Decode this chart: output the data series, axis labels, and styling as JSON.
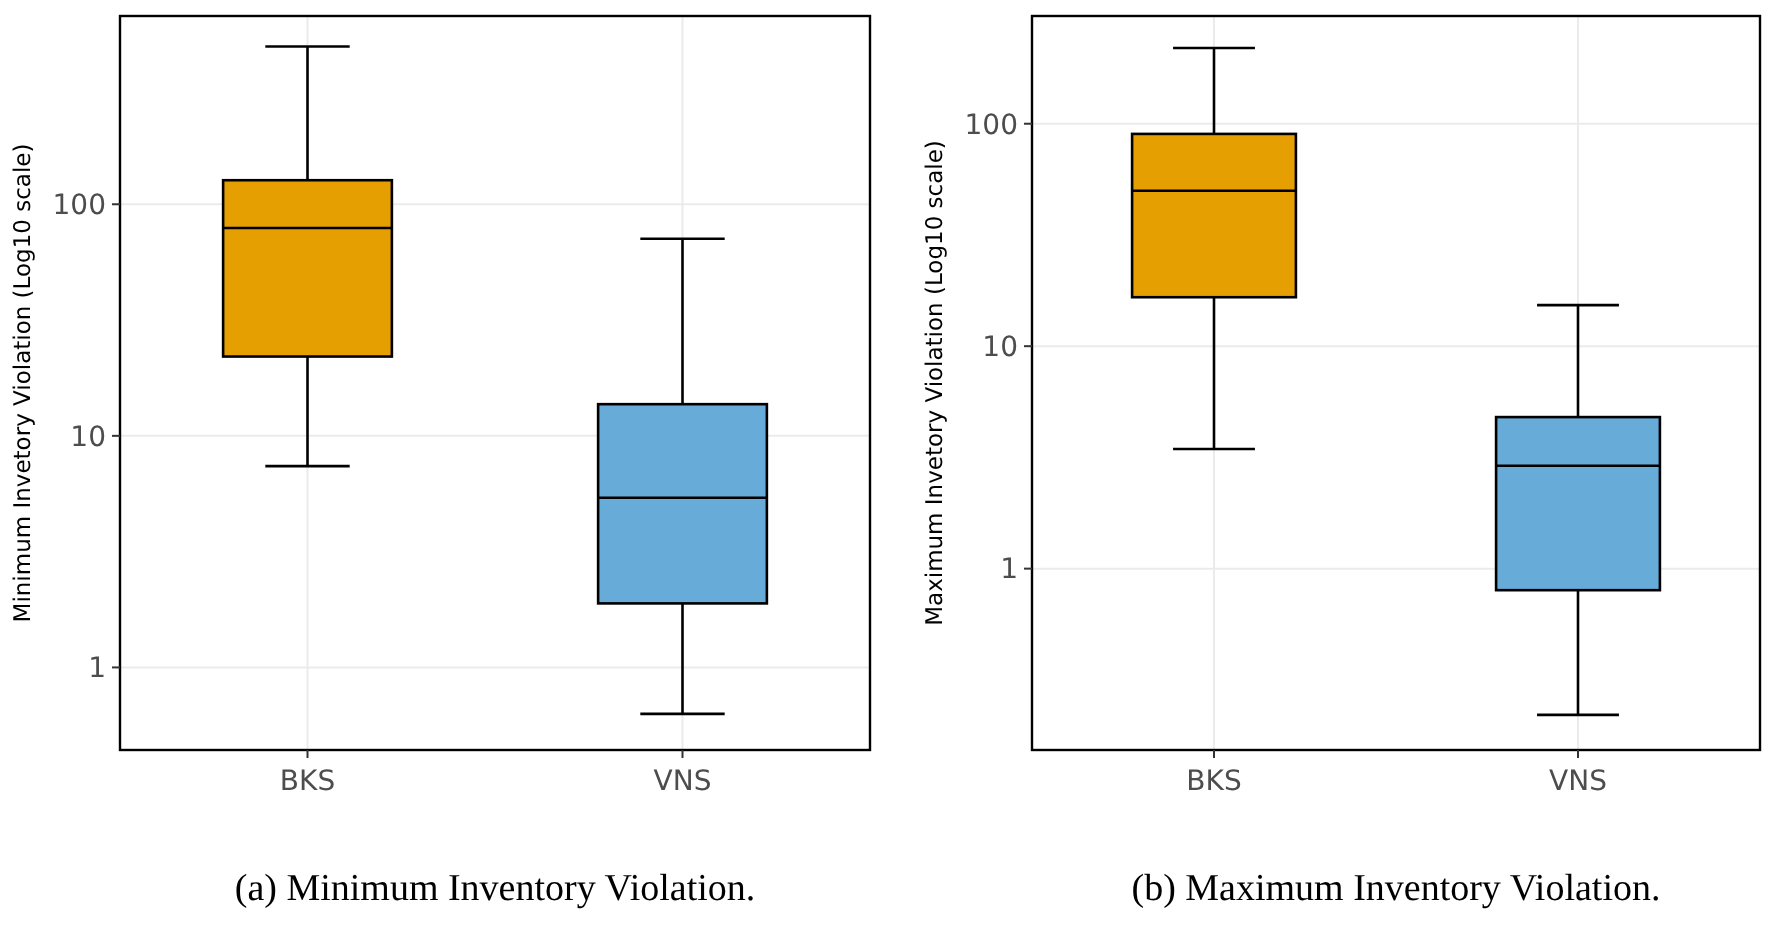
{
  "chart_data": [
    {
      "type": "box",
      "ylabel": "Minimum Invetory Violation (Log10 scale)",
      "categories": [
        "BKS",
        "VNS"
      ],
      "colors": [
        "#e69f00",
        "#67acd9"
      ],
      "boxes": [
        {
          "low": 7.4,
          "q1": 22,
          "median": 79,
          "q3": 127,
          "high": 480
        },
        {
          "low": 0.63,
          "q1": 1.89,
          "median": 5.4,
          "q3": 13.7,
          "high": 71
        }
      ],
      "log": true,
      "ylim": [
        0.44,
        650
      ],
      "yticks": [
        1,
        10,
        100
      ],
      "grid": true,
      "annotations": [
        "(a) Minimum Inventory Violation."
      ]
    },
    {
      "type": "box",
      "ylabel": "Maximum Invetory Violation (Log10 scale)",
      "categories": [
        "BKS",
        "VNS"
      ],
      "colors": [
        "#e69f00",
        "#67acd9"
      ],
      "boxes": [
        {
          "low": 3.45,
          "q1": 16.6,
          "median": 50,
          "q3": 90,
          "high": 219
        },
        {
          "low": 0.22,
          "q1": 0.8,
          "median": 2.9,
          "q3": 4.8,
          "high": 15.3
        }
      ],
      "log": true,
      "ylim": [
        0.153,
        305
      ],
      "yticks": [
        1,
        10,
        100
      ],
      "grid": true,
      "annotations": [
        "(b) Maximum Inventory Violation."
      ]
    }
  ]
}
